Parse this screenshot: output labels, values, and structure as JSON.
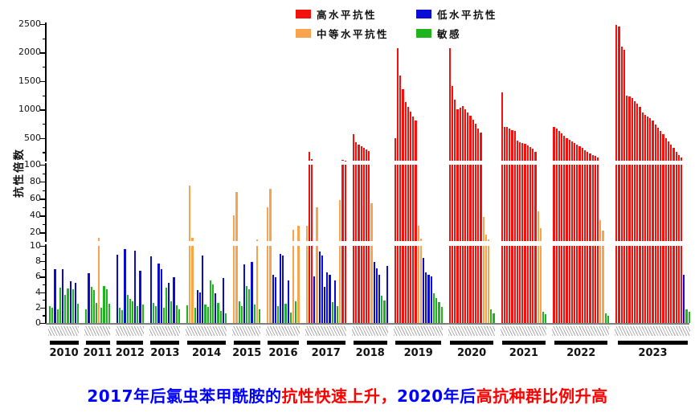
{
  "legend": {
    "items": [
      {
        "category": "R",
        "label": "高水平抗性",
        "color": "#F3110D"
      },
      {
        "category": "L",
        "label": "低水平抗性",
        "color": "#0B0BD6"
      },
      {
        "category": "M",
        "label": "中等水平抗性",
        "color": "#F9A44D"
      },
      {
        "category": "S",
        "label": "敏感",
        "color": "#1FB41F"
      }
    ]
  },
  "y_axis": {
    "label": "抗性倍数",
    "segments": [
      {
        "name": "top",
        "range": [
          100,
          2500
        ],
        "major_ticks": [
          500,
          1000,
          1500,
          2000,
          2500
        ],
        "minor_ticks": [
          250,
          750,
          1250,
          1750,
          2250
        ]
      },
      {
        "name": "middle",
        "range": [
          10,
          100
        ],
        "major_ticks": [
          20,
          40,
          60,
          80,
          100
        ],
        "minor_ticks": [
          30,
          50,
          70,
          90
        ]
      },
      {
        "name": "bottom",
        "range": [
          0,
          10
        ],
        "major_ticks": [
          0,
          2,
          4,
          6,
          8,
          10
        ],
        "minor_ticks": [
          1,
          3,
          5,
          7,
          9
        ]
      }
    ]
  },
  "caption": {
    "segments": [
      {
        "text": "2017年后氯虫苯甲酰胺的",
        "color": "#0000FF"
      },
      {
        "text": "抗性快速上升，",
        "color": "#FF0000"
      },
      {
        "text": "2020年后",
        "color": "#0000FF"
      },
      {
        "text": "高抗种群比例升高",
        "color": "#FF0000"
      }
    ]
  },
  "chart_data": {
    "type": "bar",
    "title": "",
    "xlabel": "",
    "ylabel": "抗性倍数",
    "grid": false,
    "legend_position": "top-center",
    "broken_axis_ranges": [
      [
        0,
        10
      ],
      [
        10,
        100
      ],
      [
        100,
        2500
      ]
    ],
    "category_names": {
      "R": "高水平抗性",
      "M": "中等水平抗性",
      "L": "低水平抗性",
      "S": "敏感"
    },
    "note": "each bar = one field population; value = resistance ratio (抗性倍数)",
    "groups": [
      {
        "year": "2010",
        "bars": [
          [
            "S",
            2.2
          ],
          [
            "S",
            2.0
          ],
          [
            "L",
            7.0
          ],
          [
            "S",
            1.8
          ],
          [
            "S",
            4.6
          ],
          [
            "L",
            7.0
          ],
          [
            "S",
            3.6
          ],
          [
            "S",
            4.5
          ],
          [
            "L",
            5.4
          ],
          [
            "S",
            4.4
          ],
          [
            "L",
            5.2
          ],
          [
            "S",
            2.5
          ]
        ]
      },
      {
        "year": "2011",
        "bars": [
          [
            "S",
            1.8
          ],
          [
            "L",
            6.5
          ],
          [
            "S",
            4.7
          ],
          [
            "S",
            4.3
          ],
          [
            "S",
            2.6
          ],
          [
            "M",
            14
          ],
          [
            "S",
            2.0
          ],
          [
            "S",
            4.8
          ],
          [
            "S",
            4.4
          ],
          [
            "S",
            2.5
          ]
        ]
      },
      {
        "year": "2012",
        "bars": [
          [
            "L",
            8.9
          ],
          [
            "S",
            2.0
          ],
          [
            "S",
            1.7
          ],
          [
            "L",
            9.6
          ],
          [
            "S",
            3.6
          ],
          [
            "S",
            3.1
          ],
          [
            "S",
            2.8
          ],
          [
            "L",
            9.4
          ],
          [
            "S",
            2.2
          ],
          [
            "L",
            6.8
          ],
          [
            "S",
            2.4
          ]
        ]
      },
      {
        "year": "2013",
        "bars": [
          [
            "L",
            8.6
          ],
          [
            "S",
            2.6
          ],
          [
            "S",
            2.2
          ],
          [
            "L",
            7.7
          ],
          [
            "L",
            7.0
          ],
          [
            "S",
            2.0
          ],
          [
            "S",
            4.6
          ],
          [
            "L",
            5.2
          ],
          [
            "S",
            2.8
          ],
          [
            "L",
            5.9
          ],
          [
            "S",
            2.3
          ],
          [
            "S",
            1.8
          ]
        ]
      },
      {
        "year": "2014",
        "bars": [
          [
            "S",
            2.3
          ],
          [
            "M",
            75
          ],
          [
            "M",
            14
          ],
          [
            "S",
            2.0
          ],
          [
            "L",
            4.3
          ],
          [
            "L",
            4.0
          ],
          [
            "L",
            8.8
          ],
          [
            "S",
            2.4
          ],
          [
            "S",
            2.1
          ],
          [
            "S",
            5.5
          ],
          [
            "S",
            5.0
          ],
          [
            "L",
            3.9
          ],
          [
            "S",
            2.6
          ],
          [
            "S",
            1.6
          ],
          [
            "L",
            5.8
          ],
          [
            "S",
            1.2
          ]
        ]
      },
      {
        "year": "2015",
        "bars": [
          [
            "M",
            40
          ],
          [
            "M",
            68
          ],
          [
            "S",
            2.8
          ],
          [
            "S",
            2.2
          ],
          [
            "L",
            7.6
          ],
          [
            "S",
            4.8
          ],
          [
            "S",
            4.4
          ],
          [
            "L",
            7.9
          ],
          [
            "S",
            2.4
          ],
          [
            "M",
            12
          ],
          [
            "S",
            1.8
          ]
        ]
      },
      {
        "year": "2016",
        "bars": [
          [
            "M",
            50
          ],
          [
            "M",
            72
          ],
          [
            "L",
            6.3
          ],
          [
            "L",
            5.9
          ],
          [
            "S",
            2.2
          ],
          [
            "L",
            9.0
          ],
          [
            "L",
            8.7
          ],
          [
            "S",
            2.5
          ],
          [
            "L",
            5.5
          ],
          [
            "S",
            1.4
          ],
          [
            "M",
            23
          ],
          [
            "S",
            2.8
          ],
          [
            "M",
            28
          ]
        ]
      },
      {
        "year": "2017",
        "bars": [
          [
            "M",
            28
          ],
          [
            "R",
            250
          ],
          [
            "R",
            130
          ],
          [
            "L",
            6.0
          ],
          [
            "M",
            50
          ],
          [
            "L",
            9.3
          ],
          [
            "L",
            8.8
          ],
          [
            "L",
            4.7
          ],
          [
            "L",
            6.6
          ],
          [
            "L",
            6.3
          ],
          [
            "S",
            2.7
          ],
          [
            "L",
            5.5
          ],
          [
            "S",
            2.2
          ],
          [
            "M",
            58
          ],
          [
            "R",
            120
          ],
          [
            "R",
            105
          ]
        ]
      },
      {
        "year": "2018",
        "bars": [
          [
            "R",
            560
          ],
          [
            "R",
            420
          ],
          [
            "R",
            380
          ],
          [
            "R",
            350
          ],
          [
            "R",
            320
          ],
          [
            "R",
            300
          ],
          [
            "R",
            270
          ],
          [
            "M",
            55
          ],
          [
            "L",
            7.9
          ],
          [
            "L",
            7.1
          ],
          [
            "L",
            6.3
          ],
          [
            "S",
            3.5
          ],
          [
            "S",
            2.9
          ],
          [
            "L",
            7.4
          ]
        ]
      },
      {
        "year": "2019",
        "bars": [
          [
            "R",
            500
          ],
          [
            "R",
            2075
          ],
          [
            "R",
            1600
          ],
          [
            "R",
            1350
          ],
          [
            "R",
            1135
          ],
          [
            "R",
            1040
          ],
          [
            "R",
            960
          ],
          [
            "R",
            880
          ],
          [
            "R",
            800
          ],
          [
            "M",
            28
          ],
          [
            "M",
            13
          ],
          [
            "L",
            8.4
          ],
          [
            "L",
            6.6
          ],
          [
            "L",
            6.3
          ],
          [
            "L",
            6.0
          ],
          [
            "S",
            3.9
          ],
          [
            "S",
            3.2
          ],
          [
            "S",
            2.7
          ],
          [
            "S",
            2.1
          ]
        ]
      },
      {
        "year": "2020",
        "bars": [
          [
            "R",
            2070
          ],
          [
            "R",
            1420
          ],
          [
            "R",
            1175
          ],
          [
            "R",
            1000
          ],
          [
            "R",
            1030
          ],
          [
            "R",
            1060
          ],
          [
            "R",
            1010
          ],
          [
            "R",
            950
          ],
          [
            "R",
            890
          ],
          [
            "R",
            820
          ],
          [
            "R",
            750
          ],
          [
            "R",
            670
          ],
          [
            "R",
            590
          ],
          [
            "M",
            38
          ],
          [
            "M",
            18
          ],
          [
            "M",
            12
          ],
          [
            "S",
            1.8
          ],
          [
            "S",
            1.2
          ]
        ]
      },
      {
        "year": "2021",
        "bars": [
          [
            "R",
            1300
          ],
          [
            "R",
            700
          ],
          [
            "R",
            690
          ],
          [
            "R",
            660
          ],
          [
            "R",
            640
          ],
          [
            "R",
            620
          ],
          [
            "R",
            450
          ],
          [
            "R",
            430
          ],
          [
            "R",
            410
          ],
          [
            "R",
            390
          ],
          [
            "R",
            370
          ],
          [
            "R",
            340
          ],
          [
            "R",
            310
          ],
          [
            "R",
            250
          ],
          [
            "M",
            45
          ],
          [
            "M",
            25
          ],
          [
            "S",
            1.5
          ],
          [
            "S",
            1.1
          ]
        ]
      },
      {
        "year": "2022",
        "bars": [
          [
            "R",
            700
          ],
          [
            "R",
            660
          ],
          [
            "R",
            620
          ],
          [
            "R",
            580
          ],
          [
            "R",
            540
          ],
          [
            "R",
            500
          ],
          [
            "R",
            470
          ],
          [
            "R",
            440
          ],
          [
            "R",
            410
          ],
          [
            "R",
            380
          ],
          [
            "R",
            350
          ],
          [
            "R",
            320
          ],
          [
            "R",
            290
          ],
          [
            "R",
            260
          ],
          [
            "R",
            230
          ],
          [
            "R",
            200
          ],
          [
            "R",
            180
          ],
          [
            "R",
            160
          ],
          [
            "M",
            35
          ],
          [
            "M",
            22
          ],
          [
            "S",
            1.3
          ],
          [
            "S",
            0.9
          ]
        ]
      },
      {
        "year": "2023",
        "bars": [
          [
            "R",
            2490
          ],
          [
            "R",
            2460
          ],
          [
            "R",
            2110
          ],
          [
            "R",
            2050
          ],
          [
            "R",
            1250
          ],
          [
            "R",
            1230
          ],
          [
            "R",
            1200
          ],
          [
            "R",
            1150
          ],
          [
            "R",
            1100
          ],
          [
            "R",
            1050
          ],
          [
            "R",
            950
          ],
          [
            "R",
            900
          ],
          [
            "R",
            870
          ],
          [
            "R",
            850
          ],
          [
            "R",
            800
          ],
          [
            "R",
            740
          ],
          [
            "R",
            680
          ],
          [
            "R",
            620
          ],
          [
            "R",
            560
          ],
          [
            "R",
            500
          ],
          [
            "R",
            440
          ],
          [
            "R",
            380
          ],
          [
            "R",
            320
          ],
          [
            "R",
            260
          ],
          [
            "R",
            200
          ],
          [
            "R",
            150
          ],
          [
            "L",
            6.3
          ],
          [
            "S",
            1.8
          ],
          [
            "S",
            1.5
          ]
        ]
      }
    ]
  }
}
